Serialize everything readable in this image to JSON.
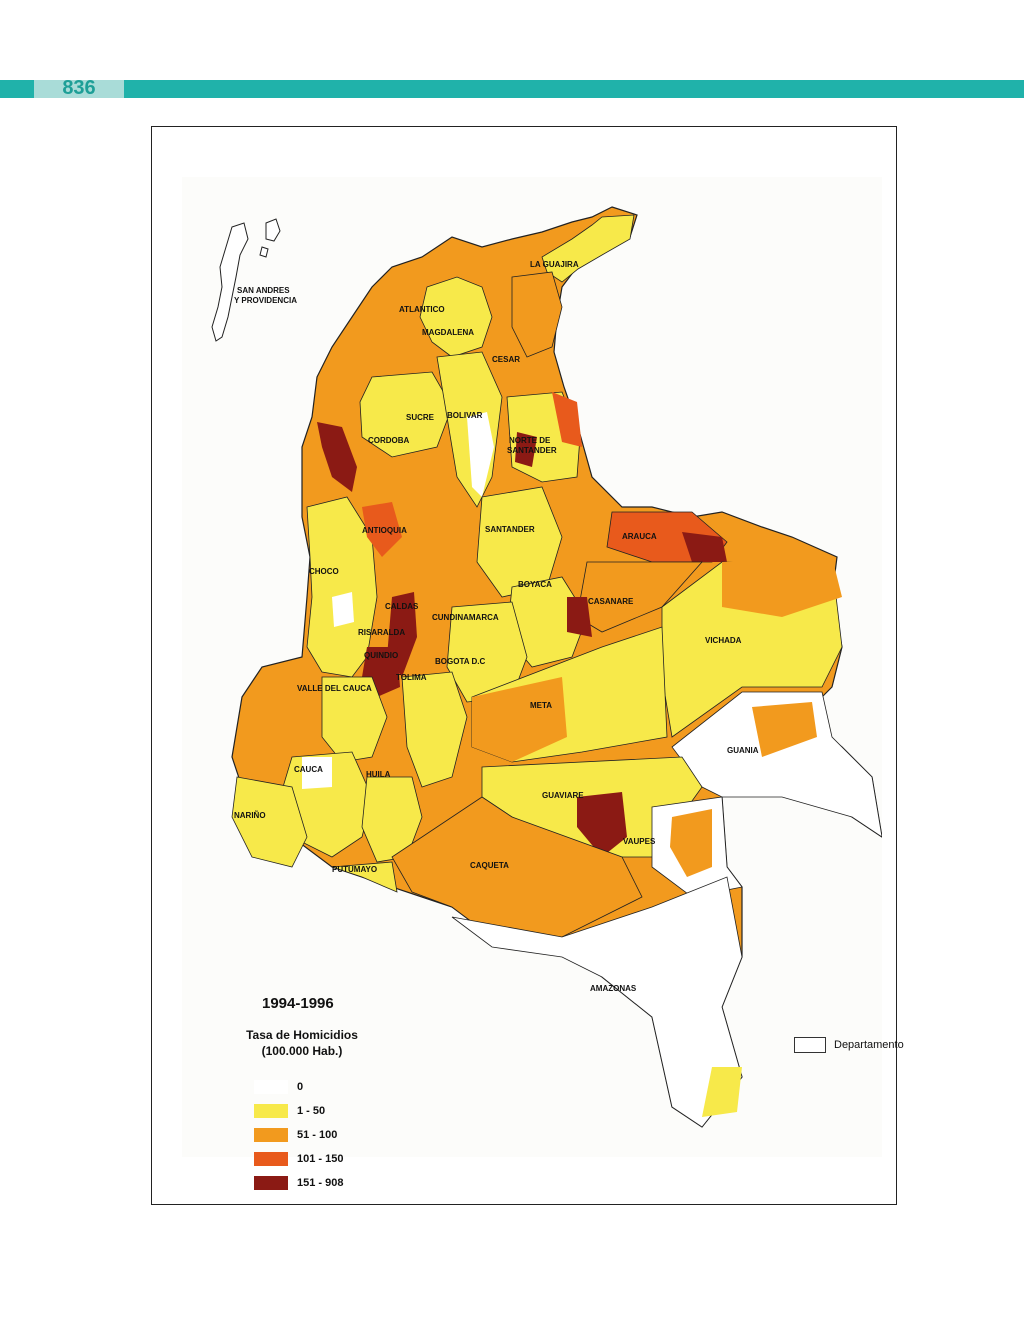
{
  "page": {
    "number": "836"
  },
  "map": {
    "period": "1994-1996",
    "legend_title": "Tasa de Homicidios",
    "legend_subtitle": "(100.000 Hab.)",
    "classes": [
      {
        "label": "0",
        "color": "#ffffff"
      },
      {
        "label": "1 - 50",
        "color": "#f7e94a"
      },
      {
        "label": "51 - 100",
        "color": "#f29a1e"
      },
      {
        "label": "101 - 150",
        "color": "#e85a1c"
      },
      {
        "label": "151 - 908",
        "color": "#8b1a14"
      }
    ],
    "boundary_legend": "Departamento",
    "departments": {
      "san_andres_line1": "SAN ANDRES",
      "san_andres_line2": "Y PROVIDENCIA",
      "la_guajira": "LA GUAJIRA",
      "atlantico": "ATLANTICO",
      "magdalena": "MAGDALENA",
      "cesar": "CESAR",
      "sucre": "SUCRE",
      "bolivar": "BOLIVAR",
      "cordoba": "CORDOBA",
      "norte_line1": "NORTE DE",
      "norte_line2": "SANTANDER",
      "antioquia": "ANTIOQUIA",
      "santander": "SANTANDER",
      "arauca": "ARAUCA",
      "choco": "CHOCO",
      "boyaca": "BOYACA",
      "casanare": "CASANARE",
      "caldas": "CALDAS",
      "cundinamarca": "CUNDINAMARCA",
      "risaralda": "RISARALDA",
      "vichada": "VICHADA",
      "quindio": "QUINDIO",
      "bogota": "BOGOTA D.C",
      "tolima": "TOLIMA",
      "valle": "VALLE DEL CAUCA",
      "meta": "META",
      "guainia": "GUANIA",
      "cauca": "CAUCA",
      "huila": "HUILA",
      "guaviare": "GUAVIARE",
      "narino": "NARIÑO",
      "vaupes": "VAUPES",
      "putumayo": "PUTUMAYO",
      "caqueta": "CAQUETA",
      "amazonas": "AMAZONAS"
    }
  }
}
